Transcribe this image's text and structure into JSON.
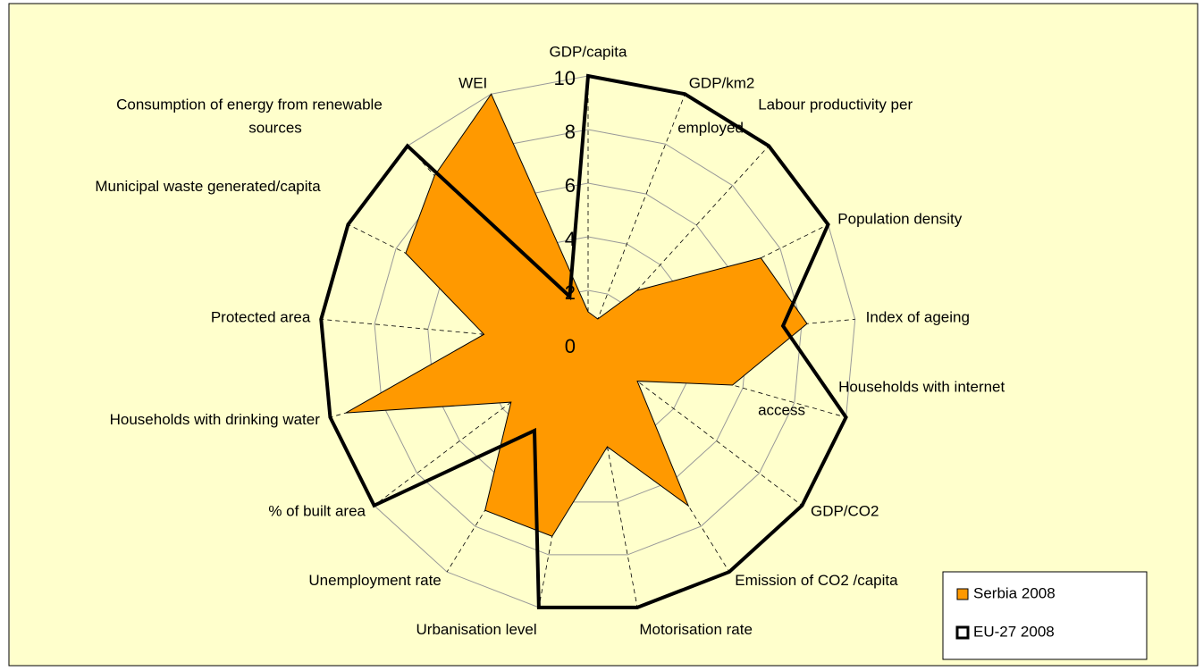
{
  "chart_data": {
    "type": "radar",
    "categories": [
      "GDP/capita",
      "GDP/km2",
      "Labour  productivity per employed",
      "Population density",
      "Index of ageing",
      "Households with internet access",
      "GDP/CO2",
      "Emission of CO2 /capita",
      "Motorisation rate",
      "Urbanisation level",
      "Unemployment rate",
      "% of built area",
      "Households with drinking water",
      "Protected area",
      "Municipal waste generated/capita",
      "Consumption of energy from renewable sources",
      "WEI"
    ],
    "series": [
      {
        "name": "Serbia 2008",
        "color": "#ff9900",
        "values": [
          1.2,
          1,
          2.7,
          7.2,
          8.2,
          5.6,
          2.3,
          7.1,
          3.9,
          7.3,
          7.3,
          3.6,
          9.4,
          3.9,
          7.6,
          8.5,
          10
        ]
      },
      {
        "name": "EU-27 2008",
        "color": "#000000",
        "values": [
          10,
          10,
          10,
          10,
          7.3,
          10,
          10,
          10,
          10,
          10,
          3.8,
          10,
          10,
          10,
          10,
          10,
          1.9
        ]
      }
    ],
    "ylim": [
      0,
      10
    ],
    "yticks": [
      0,
      2,
      4,
      6,
      8,
      10
    ],
    "grid": true,
    "legend": "lower right"
  }
}
